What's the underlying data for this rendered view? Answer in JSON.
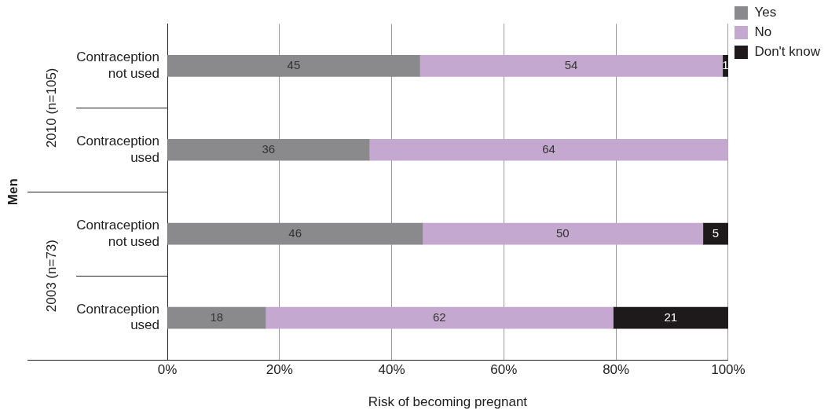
{
  "chart_data": {
    "type": "bar",
    "orientation": "horizontal",
    "stacked": true,
    "xlabel": "Risk of becoming pregnant",
    "ylabel": "Men",
    "categories": [
      "Contraception not used",
      "Contraception used",
      "Contraception not used",
      "Contraception used"
    ],
    "annotations": [
      "2010 (n=105)",
      "2003 (n=73)"
    ],
    "series": [
      {
        "name": "Yes",
        "color": "#8a8a8c",
        "values": [
          45,
          36,
          45.5,
          17.5
        ],
        "value_labels": [
          "45",
          "36",
          "46",
          "18"
        ]
      },
      {
        "name": "No",
        "color": "#c5a8d0",
        "values": [
          54,
          64,
          50,
          62
        ],
        "value_labels": [
          "54",
          "64",
          "50",
          "62"
        ]
      },
      {
        "name": "Don't know",
        "color": "#1e1a1c",
        "values": [
          1,
          null,
          4.5,
          20.5
        ],
        "value_labels": [
          "1",
          null,
          "5",
          "21"
        ]
      }
    ],
    "xlim": [
      0,
      100
    ],
    "xticks": [
      {
        "value": 0,
        "label": "0%"
      },
      {
        "value": 20,
        "label": "20%"
      },
      {
        "value": 40,
        "label": "40%"
      },
      {
        "value": 60,
        "label": "60%"
      },
      {
        "value": 80,
        "label": "80%"
      },
      {
        "value": 100,
        "label": "100%"
      }
    ],
    "grid": "x",
    "legend": "top right"
  }
}
